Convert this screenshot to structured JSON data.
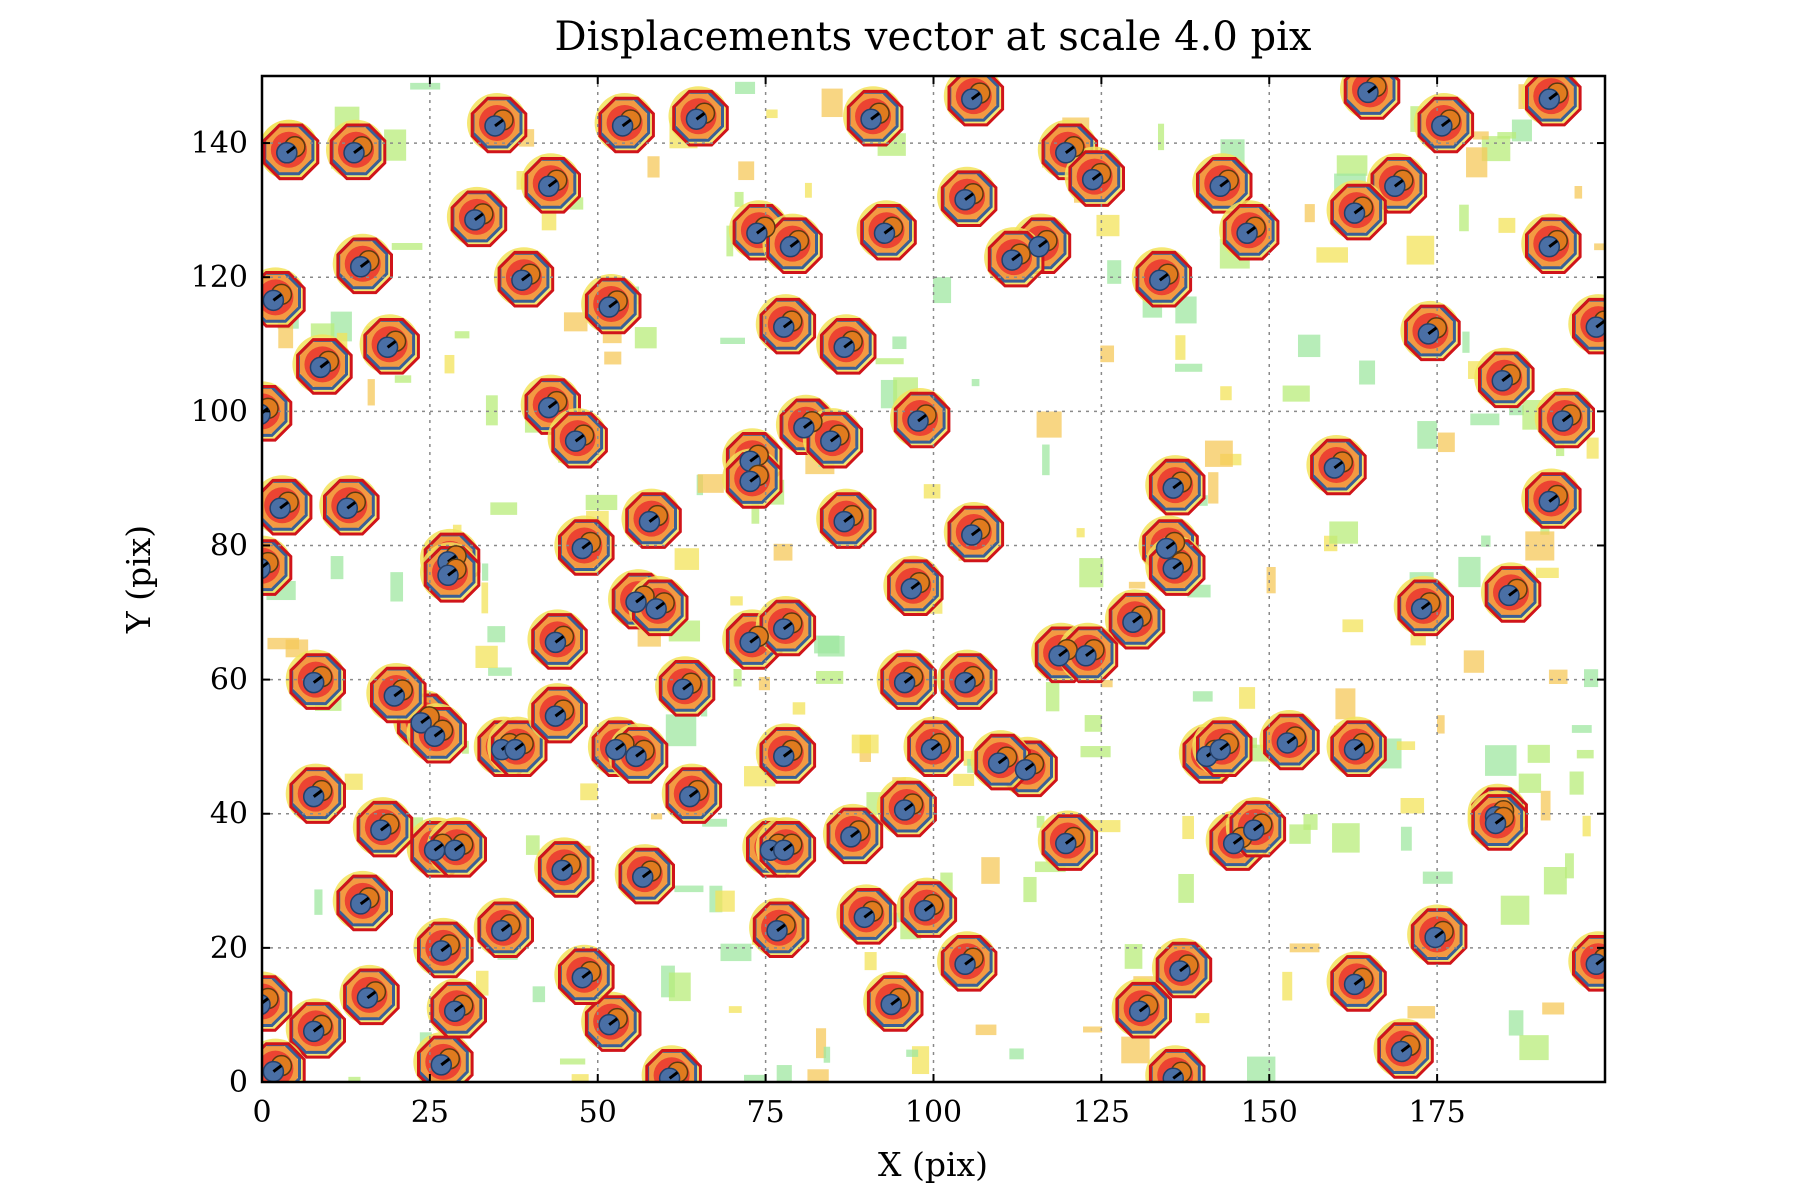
{
  "chart_data": {
    "type": "scatter",
    "title": "Displacements vector at scale 4.0 pix",
    "xlabel": "X (pix)",
    "ylabel": "Y (pix)",
    "xlim": [
      0,
      200
    ],
    "ylim": [
      0,
      150
    ],
    "xticks": [
      0,
      25,
      50,
      75,
      100,
      125,
      150,
      175
    ],
    "yticks": [
      0,
      20,
      40,
      60,
      80,
      100,
      120,
      140
    ],
    "x_tick_labels": [
      "0",
      "25",
      "50",
      "75",
      "100",
      "125",
      "150",
      "175"
    ],
    "y_tick_labels": [
      "0",
      "20",
      "40",
      "60",
      "80",
      "100",
      "120",
      "140"
    ],
    "grid": true,
    "background": "residual intensity map (blue-green-yellow-orange-red colormap)",
    "colors": {
      "source_marker": "#4a6fa5",
      "reference_marker": "#e07b1e",
      "source_contour": "#3a5f95",
      "reference_contour": "#d0141a",
      "vector": "#000000",
      "blob_core": "#ec4432",
      "blob_mid": "#f39a42",
      "blob_low": "#f3e35a",
      "blob_faint": "#b8ec7a",
      "grid": "#8a8a8a"
    },
    "series": [
      {
        "name": "",
        "marker": "circle",
        "points": [
          [
            4,
            139
          ],
          [
            4,
            139
          ],
          [
            19,
            110
          ],
          [
            9,
            107
          ],
          [
            2,
            117
          ],
          [
            0,
            100
          ],
          [
            3,
            86
          ],
          [
            13,
            86
          ],
          [
            0,
            77
          ],
          [
            8,
            60
          ],
          [
            14,
            139
          ],
          [
            15,
            122
          ],
          [
            32,
            129
          ],
          [
            35,
            143
          ],
          [
            43,
            134
          ],
          [
            39,
            120
          ],
          [
            43,
            101
          ],
          [
            47,
            96
          ],
          [
            52,
            116
          ],
          [
            54,
            143
          ],
          [
            65,
            144
          ],
          [
            91,
            144
          ],
          [
            106,
            147
          ],
          [
            120,
            139
          ],
          [
            124,
            135
          ],
          [
            143,
            134
          ],
          [
            147,
            127
          ],
          [
            169,
            134
          ],
          [
            163,
            130
          ],
          [
            176,
            143
          ],
          [
            165,
            148
          ],
          [
            192,
            147
          ],
          [
            192,
            125
          ],
          [
            199,
            113
          ],
          [
            185,
            105
          ],
          [
            194,
            99
          ],
          [
            192,
            87
          ],
          [
            174,
            112
          ],
          [
            160,
            92
          ],
          [
            136,
            89
          ],
          [
            135,
            80
          ],
          [
            136,
            77
          ],
          [
            130,
            69
          ],
          [
            134,
            120
          ],
          [
            116,
            125
          ],
          [
            112,
            123
          ],
          [
            105,
            132
          ],
          [
            93,
            127
          ],
          [
            87,
            110
          ],
          [
            78,
            113
          ],
          [
            74,
            127
          ],
          [
            79,
            125
          ],
          [
            48,
            80
          ],
          [
            58,
            84
          ],
          [
            56,
            72
          ],
          [
            59,
            71
          ],
          [
            28,
            78
          ],
          [
            28,
            76
          ],
          [
            44,
            66
          ],
          [
            36,
            50
          ],
          [
            38,
            50
          ],
          [
            24,
            54
          ],
          [
            26,
            52
          ],
          [
            20,
            58
          ],
          [
            44,
            55
          ],
          [
            53,
            50
          ],
          [
            56,
            49
          ],
          [
            63,
            59
          ],
          [
            64,
            43
          ],
          [
            73,
            66
          ],
          [
            78,
            68
          ],
          [
            81,
            98
          ],
          [
            85,
            96
          ],
          [
            73,
            93
          ],
          [
            73,
            90
          ],
          [
            87,
            84
          ],
          [
            98,
            99
          ],
          [
            97,
            74
          ],
          [
            96,
            60
          ],
          [
            105,
            60
          ],
          [
            106,
            82
          ],
          [
            114,
            47
          ],
          [
            110,
            48
          ],
          [
            100,
            50
          ],
          [
            96,
            41
          ],
          [
            88,
            37
          ],
          [
            78,
            49
          ],
          [
            76,
            35
          ],
          [
            78,
            35
          ],
          [
            77,
            23
          ],
          [
            90,
            25
          ],
          [
            94,
            12
          ],
          [
            99,
            26
          ],
          [
            105,
            18
          ],
          [
            120,
            36
          ],
          [
            119,
            64
          ],
          [
            123,
            64
          ],
          [
            141,
            49
          ],
          [
            143,
            50
          ],
          [
            145,
            36
          ],
          [
            148,
            38
          ],
          [
            153,
            51
          ],
          [
            163,
            50
          ],
          [
            163,
            15
          ],
          [
            170,
            5
          ],
          [
            175,
            22
          ],
          [
            184,
            40
          ],
          [
            186,
            73
          ],
          [
            173,
            71
          ],
          [
            137,
            17
          ],
          [
            136,
            1
          ],
          [
            131,
            11
          ],
          [
            52,
            9
          ],
          [
            48,
            16
          ],
          [
            45,
            32
          ],
          [
            36,
            23
          ],
          [
            26,
            35
          ],
          [
            29,
            35
          ],
          [
            27,
            20
          ],
          [
            27,
            3
          ],
          [
            16,
            13
          ],
          [
            15,
            27
          ],
          [
            8,
            43
          ],
          [
            8,
            8
          ],
          [
            18,
            38
          ],
          [
            29,
            11
          ],
          [
            2,
            2
          ],
          [
            0,
            12
          ],
          [
            61,
            1
          ],
          [
            199,
            18
          ],
          [
            184,
            39
          ],
          [
            57,
            31
          ]
        ]
      }
    ]
  }
}
